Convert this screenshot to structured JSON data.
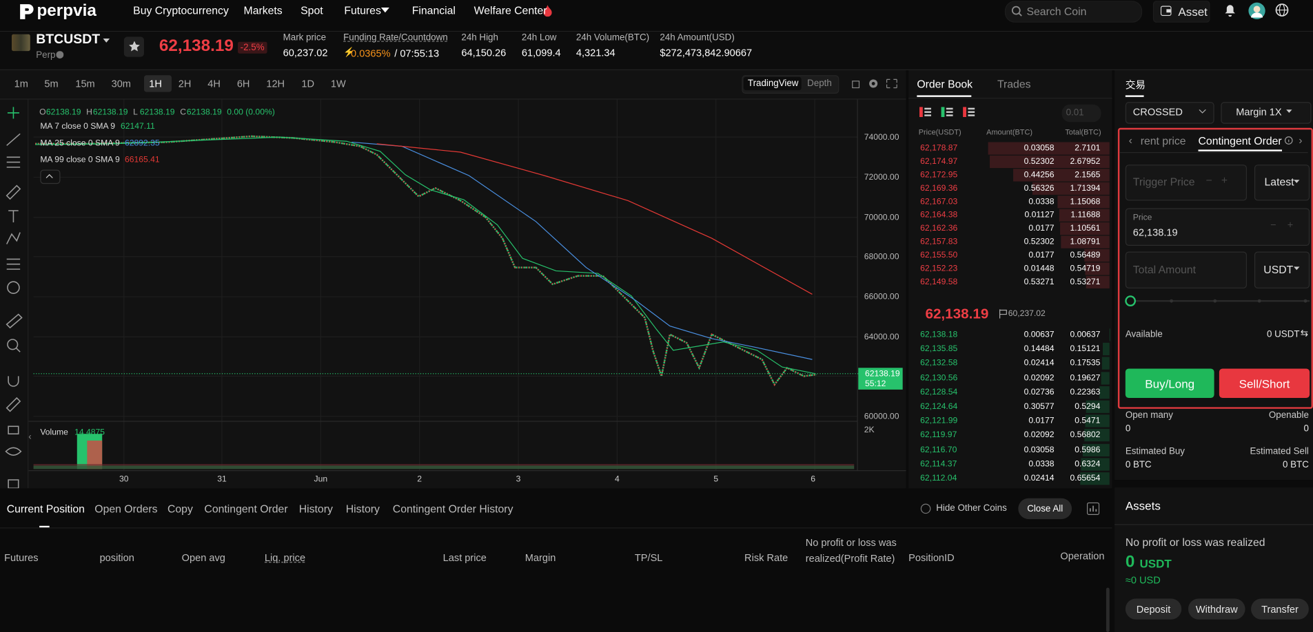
{
  "nav": {
    "logo": "perpvia",
    "links": [
      "Buy Cryptocurrency",
      "Markets",
      "Spot",
      "Futures",
      "Financial",
      "Welfare Center"
    ],
    "search": "Search Coin",
    "asset": "Asset"
  },
  "ticker": {
    "symbol": "BTCUSDT",
    "market": "Perp",
    "price": "62,138.19",
    "change": "-2.5%",
    "stats": [
      {
        "label": "Mark price",
        "value": "60,237.02"
      },
      {
        "label": "Funding Rate/Countdown",
        "value": "0.0365%",
        "countdown": "/ 07:55:13"
      },
      {
        "label": "24h High",
        "value": "64,150.26"
      },
      {
        "label": "24h Low",
        "value": "61,099.4"
      },
      {
        "label": "24h Volume(BTC)",
        "value": "4,321.34"
      },
      {
        "label": "24h Amount(USD)",
        "value": "$272,473,842.90667"
      }
    ]
  },
  "chart": {
    "intervals": [
      "1m",
      "5m",
      "15m",
      "30m",
      "1H",
      "2H",
      "4H",
      "6H",
      "12H",
      "1D",
      "1W"
    ],
    "active": "1H",
    "views": [
      "TradingView",
      "Depth"
    ],
    "ohlc": [
      {
        "label": "O",
        "value": "62138.19"
      },
      {
        "label": "H",
        "value": "62138.19"
      },
      {
        "label": "L",
        "value": "62138.19"
      },
      {
        "label": "C",
        "value": "62138.19"
      }
    ],
    "change": "0.00 (0.00%)",
    "ma": [
      {
        "name": "MA 7 close 0 SMA 9",
        "value": "62147.11",
        "color": "#27c26c"
      },
      {
        "name": "MA 25 close 0 SMA 9",
        "value": "62892.35",
        "color": "#4a90e2"
      },
      {
        "name": "MA 99 close 0 SMA 9",
        "value": "66165.41",
        "color": "#e53935"
      }
    ],
    "price_axis": [
      "74000.00",
      "72000.00",
      "70000.00",
      "68000.00",
      "66000.00",
      "64000.00",
      "60000.00"
    ],
    "last_price": "62138.19",
    "countdown": "55:12",
    "volume": {
      "label": "Volume",
      "value": "14.4875",
      "axis": "2K"
    },
    "x_labels": [
      "30",
      "31",
      "Jun",
      "2",
      "3",
      "4",
      "5",
      "6"
    ]
  },
  "order_book": {
    "tabs": [
      "Order Book",
      "Trades"
    ],
    "precision": "0.01",
    "headers": [
      "Price(USDT)",
      "Amount(BTC)",
      "Total(BTC)"
    ],
    "asks": [
      [
        "62,178.87",
        0.03058,
        2.7101
      ],
      [
        "62,174.97",
        0.52302,
        2.67952
      ],
      [
        "62,172.95",
        0.44256,
        2.1565
      ],
      [
        "62,169.36",
        0.56326,
        1.71394
      ],
      [
        "62,167.03",
        0.0338,
        1.15068
      ],
      [
        "62,164.38",
        0.01127,
        1.11688
      ],
      [
        "62,162.36",
        0.0177,
        1.10561
      ],
      [
        "62,157.83",
        0.52302,
        1.08791
      ],
      [
        "62,155.50",
        0.0177,
        0.56489
      ],
      [
        "62,152.23",
        0.01448,
        0.54719
      ],
      [
        "62,149.58",
        0.53271,
        0.53271
      ]
    ],
    "last_price": "62,138.19",
    "mark_price": "60,237.02",
    "bids": [
      [
        "62,138.18",
        0.00637,
        0.00637
      ],
      [
        "62,135.85",
        0.14484,
        0.15121
      ],
      [
        "62,132.58",
        0.02414,
        0.17535
      ],
      [
        "62,130.56",
        0.02092,
        0.19627
      ],
      [
        "62,128.54",
        0.02736,
        0.22363
      ],
      [
        "62,124.64",
        0.30577,
        0.5294
      ],
      [
        "62,121.99",
        0.0177,
        0.5471
      ],
      [
        "62,119.97",
        0.02092,
        0.56802
      ],
      [
        "62,116.70",
        0.03058,
        0.5986
      ],
      [
        "62,114.37",
        0.0338,
        0.6324
      ],
      [
        "62,112.04",
        0.02414,
        0.65654
      ]
    ]
  },
  "trade": {
    "title": "交易",
    "margin_mode": "CROSSED",
    "leverage": "Margin 1X",
    "tabs": [
      "rent price",
      "Contingent Order"
    ],
    "trigger_price": "Trigger Price",
    "trigger_type": "Latest",
    "price_label": "Price",
    "price": "62,138.19",
    "total_amount": "Total Amount",
    "unit": "USDT",
    "available_label": "Available",
    "available": "0 USDT",
    "buy": "Buy/Long",
    "sell": "Sell/Short",
    "open_many": "Open many",
    "open_many_value": "0",
    "openable": "Openable",
    "openable_value": "0",
    "est_buy": "Estimated Buy",
    "est_buy_value": "0 BTC",
    "est_sell": "Estimated Sell",
    "est_sell_value": "0 BTC"
  },
  "positions": {
    "tabs": [
      "Current Position",
      "Open Orders",
      "Copy",
      "Contingent Order",
      "History",
      "History",
      "Contingent Order History"
    ],
    "hide_label": "Hide Other Coins",
    "close_all": "Close All",
    "columns": [
      "Futures",
      "position",
      "Open avg",
      "Liq. price",
      "Last price",
      "Margin",
      "TP/SL",
      "Risk Rate",
      "No profit or loss was realized(Profit Rate)",
      "PositionID",
      "Operation"
    ]
  },
  "assets": {
    "title": "Assets",
    "pnl": "No profit or loss was realized",
    "amount": "0",
    "unit": "USDT",
    "approx": "≈0 USD",
    "buttons": [
      "Deposit",
      "Withdraw",
      "Transfer"
    ]
  }
}
